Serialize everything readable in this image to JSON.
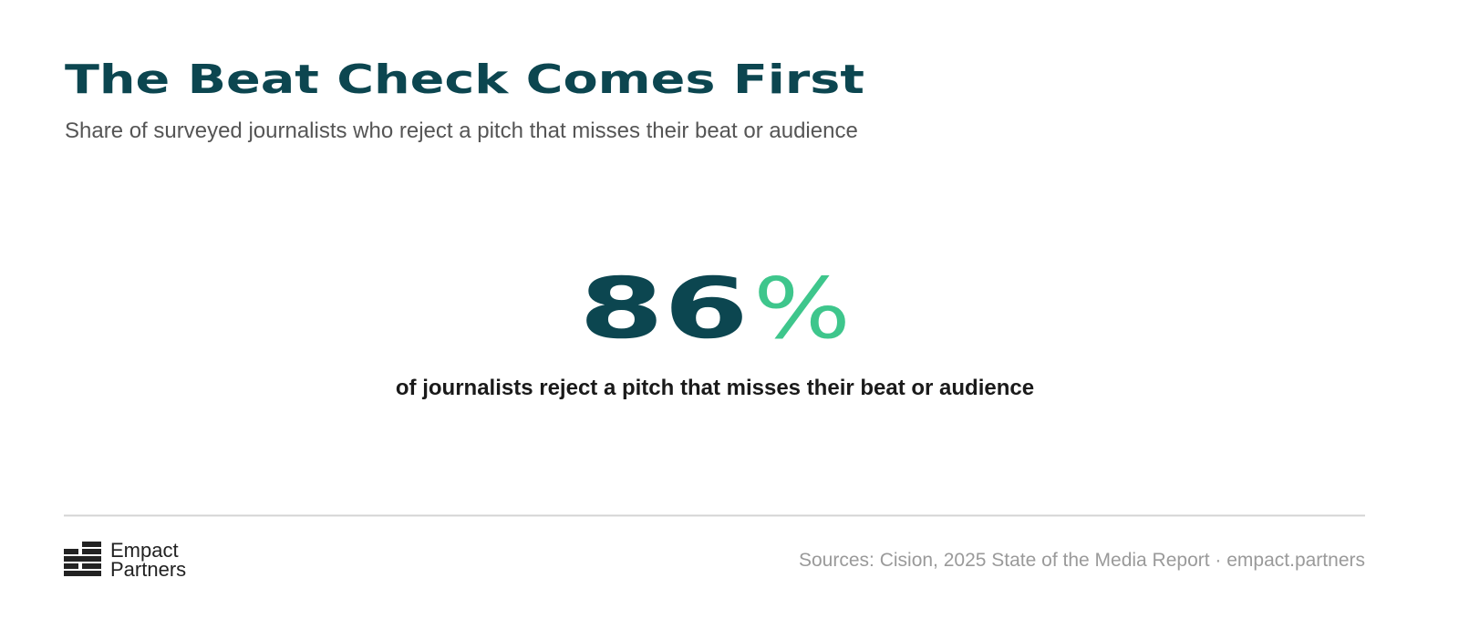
{
  "header": {
    "title": "The Beat Check Comes First",
    "subtitle": "Share of surveyed journalists who reject a pitch that misses their beat or audience"
  },
  "stat": {
    "value": 86,
    "unit": "%",
    "caption": "of journalists reject a pitch that misses their beat or audience"
  },
  "footer": {
    "logo": [
      "Empact",
      "Partners"
    ],
    "source": "Sources: Cision, 2025 State of the Media Report · empact.partners"
  }
}
